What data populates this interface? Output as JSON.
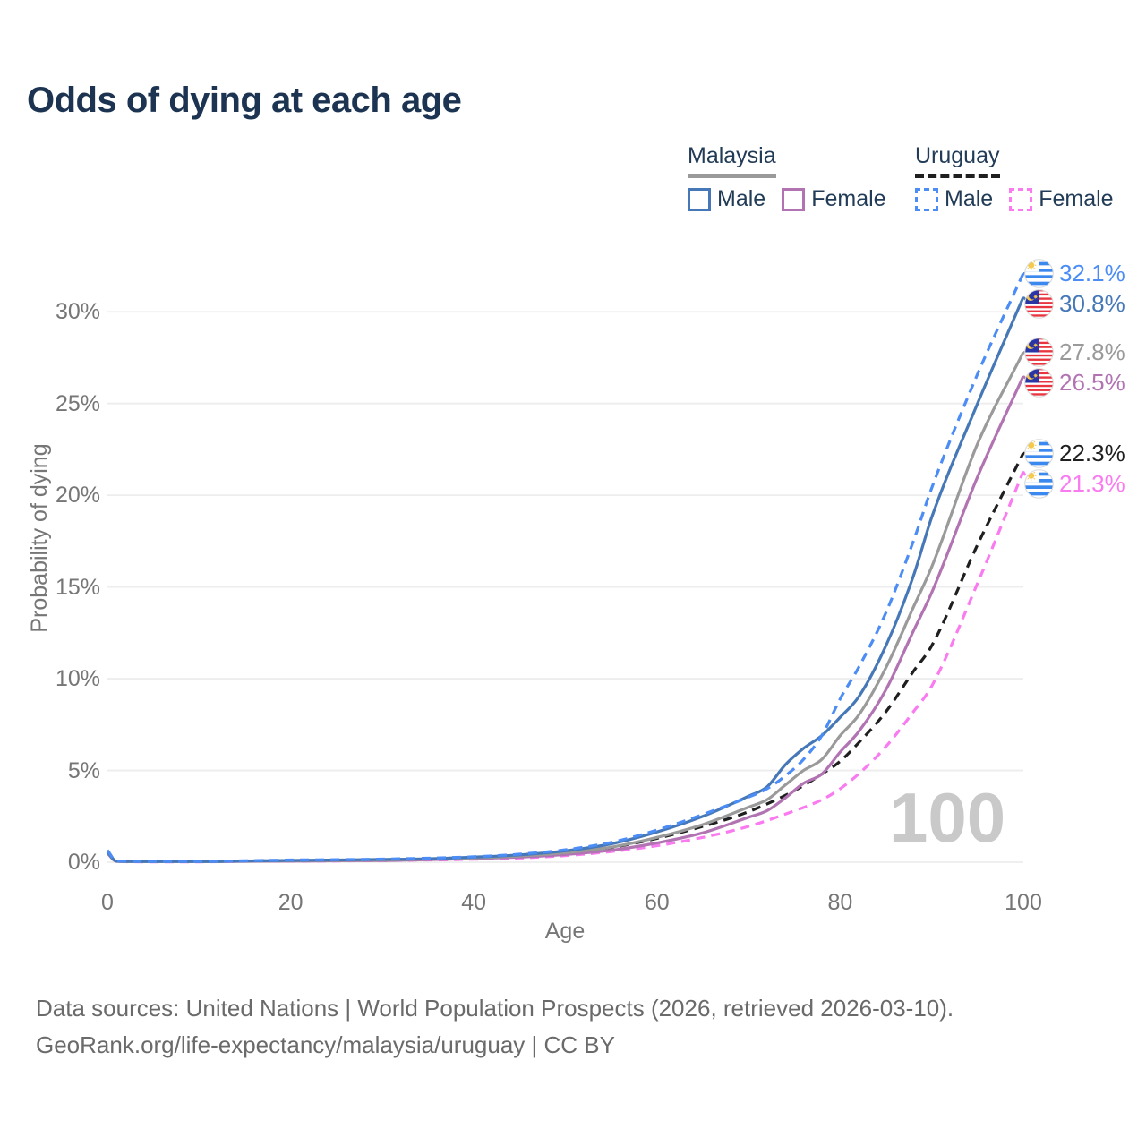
{
  "title": "Odds of dying at each age",
  "legend": {
    "groups": [
      {
        "country": "Malaysia",
        "line_style": "solid",
        "line_color": "#9a9a9a",
        "items": [
          {
            "label": "Male",
            "color": "#4678b8",
            "dashed": false
          },
          {
            "label": "Female",
            "color": "#b273b3",
            "dashed": false
          }
        ]
      },
      {
        "country": "Uruguay",
        "line_style": "dashed",
        "line_color": "#1f1f1f",
        "items": [
          {
            "label": "Male",
            "color": "#4b8cf5",
            "dashed": true
          },
          {
            "label": "Female",
            "color": "#f97bef",
            "dashed": true
          }
        ]
      }
    ]
  },
  "chart_data": {
    "type": "line",
    "title": "Odds of dying at each age",
    "xlabel": "Age",
    "ylabel": "Probability of dying",
    "xlim": [
      0,
      100
    ],
    "ylim": [
      0,
      32.5
    ],
    "x_ticks": [
      0,
      20,
      40,
      60,
      80,
      100
    ],
    "y_ticks": [
      0,
      5,
      10,
      15,
      20,
      25,
      30
    ],
    "y_tick_suffix": "%",
    "grid": "horizontal",
    "legend_position": "top-right",
    "hover_age_watermark": "100",
    "series": [
      {
        "name": "Uruguay Male",
        "country": "Uruguay",
        "sex": "Male",
        "color": "#4b8cf5",
        "dashed": true,
        "flag": "uruguay",
        "end_label": "32.1%",
        "points": [
          [
            0,
            0.65
          ],
          [
            1,
            0.06
          ],
          [
            5,
            0.04
          ],
          [
            10,
            0.04
          ],
          [
            15,
            0.08
          ],
          [
            20,
            0.12
          ],
          [
            25,
            0.14
          ],
          [
            30,
            0.17
          ],
          [
            35,
            0.22
          ],
          [
            40,
            0.3
          ],
          [
            45,
            0.44
          ],
          [
            50,
            0.68
          ],
          [
            55,
            1.08
          ],
          [
            60,
            1.75
          ],
          [
            65,
            2.6
          ],
          [
            70,
            3.55
          ],
          [
            72,
            4.0
          ],
          [
            74,
            4.7
          ],
          [
            76,
            5.6
          ],
          [
            78,
            6.9
          ],
          [
            80,
            8.9
          ],
          [
            82,
            10.6
          ],
          [
            85,
            13.6
          ],
          [
            88,
            17.5
          ],
          [
            90,
            20.4
          ],
          [
            95,
            26.6
          ],
          [
            100,
            32.1
          ]
        ]
      },
      {
        "name": "Malaysia Male",
        "country": "Malaysia",
        "sex": "Male",
        "color": "#4678b8",
        "dashed": false,
        "flag": "malaysia",
        "end_label": "30.8%",
        "points": [
          [
            0,
            0.55
          ],
          [
            1,
            0.06
          ],
          [
            5,
            0.04
          ],
          [
            10,
            0.04
          ],
          [
            15,
            0.07
          ],
          [
            20,
            0.1
          ],
          [
            25,
            0.12
          ],
          [
            30,
            0.15
          ],
          [
            35,
            0.19
          ],
          [
            40,
            0.28
          ],
          [
            45,
            0.4
          ],
          [
            50,
            0.62
          ],
          [
            55,
            1.0
          ],
          [
            60,
            1.65
          ],
          [
            65,
            2.5
          ],
          [
            70,
            3.6
          ],
          [
            72,
            4.1
          ],
          [
            74,
            5.3
          ],
          [
            76,
            6.2
          ],
          [
            78,
            6.9
          ],
          [
            80,
            7.9
          ],
          [
            82,
            9.0
          ],
          [
            85,
            11.8
          ],
          [
            88,
            15.6
          ],
          [
            90,
            18.8
          ],
          [
            95,
            25.0
          ],
          [
            100,
            30.8
          ]
        ]
      },
      {
        "name": "Malaysia Both sexes",
        "country": "Malaysia",
        "sex": "Both",
        "color": "#9a9a9a",
        "dashed": false,
        "flag": "malaysia",
        "end_label": "27.8%",
        "points": [
          [
            0,
            0.52
          ],
          [
            1,
            0.05
          ],
          [
            5,
            0.03
          ],
          [
            10,
            0.03
          ],
          [
            15,
            0.06
          ],
          [
            20,
            0.08
          ],
          [
            25,
            0.1
          ],
          [
            30,
            0.12
          ],
          [
            35,
            0.17
          ],
          [
            40,
            0.24
          ],
          [
            45,
            0.34
          ],
          [
            50,
            0.52
          ],
          [
            55,
            0.82
          ],
          [
            60,
            1.35
          ],
          [
            65,
            2.05
          ],
          [
            70,
            3.0
          ],
          [
            72,
            3.4
          ],
          [
            74,
            4.2
          ],
          [
            76,
            5.0
          ],
          [
            78,
            5.6
          ],
          [
            80,
            6.9
          ],
          [
            82,
            8.0
          ],
          [
            85,
            10.6
          ],
          [
            88,
            13.9
          ],
          [
            90,
            16.1
          ],
          [
            95,
            22.8
          ],
          [
            100,
            27.8
          ]
        ]
      },
      {
        "name": "Malaysia Female",
        "country": "Malaysia",
        "sex": "Female",
        "color": "#b273b3",
        "dashed": false,
        "flag": "malaysia",
        "end_label": "26.5%",
        "points": [
          [
            0,
            0.48
          ],
          [
            1,
            0.05
          ],
          [
            5,
            0.03
          ],
          [
            10,
            0.03
          ],
          [
            15,
            0.05
          ],
          [
            20,
            0.06
          ],
          [
            25,
            0.08
          ],
          [
            30,
            0.09
          ],
          [
            35,
            0.14
          ],
          [
            40,
            0.2
          ],
          [
            45,
            0.28
          ],
          [
            50,
            0.42
          ],
          [
            55,
            0.65
          ],
          [
            60,
            1.05
          ],
          [
            65,
            1.6
          ],
          [
            70,
            2.45
          ],
          [
            72,
            2.8
          ],
          [
            74,
            3.5
          ],
          [
            76,
            4.3
          ],
          [
            78,
            4.8
          ],
          [
            80,
            6.0
          ],
          [
            82,
            7.1
          ],
          [
            85,
            9.4
          ],
          [
            88,
            12.6
          ],
          [
            90,
            14.7
          ],
          [
            95,
            21.0
          ],
          [
            100,
            26.5
          ]
        ]
      },
      {
        "name": "Uruguay Both sexes",
        "country": "Uruguay",
        "sex": "Both",
        "color": "#1f1f1f",
        "dashed": true,
        "flag": "uruguay",
        "end_label": "22.3%",
        "points": [
          [
            0,
            0.55
          ],
          [
            1,
            0.05
          ],
          [
            5,
            0.03
          ],
          [
            10,
            0.03
          ],
          [
            15,
            0.07
          ],
          [
            20,
            0.09
          ],
          [
            25,
            0.11
          ],
          [
            30,
            0.13
          ],
          [
            35,
            0.18
          ],
          [
            40,
            0.23
          ],
          [
            45,
            0.33
          ],
          [
            50,
            0.5
          ],
          [
            55,
            0.8
          ],
          [
            60,
            1.3
          ],
          [
            65,
            1.95
          ],
          [
            70,
            2.75
          ],
          [
            75,
            3.9
          ],
          [
            78,
            4.8
          ],
          [
            80,
            5.5
          ],
          [
            82,
            6.5
          ],
          [
            85,
            8.2
          ],
          [
            88,
            10.4
          ],
          [
            90,
            11.8
          ],
          [
            95,
            17.3
          ],
          [
            100,
            22.3
          ]
        ]
      },
      {
        "name": "Uruguay Female",
        "country": "Uruguay",
        "sex": "Female",
        "color": "#f97bef",
        "dashed": true,
        "flag": "uruguay",
        "end_label": "21.3%",
        "points": [
          [
            0,
            0.5
          ],
          [
            1,
            0.04
          ],
          [
            5,
            0.02
          ],
          [
            10,
            0.02
          ],
          [
            15,
            0.05
          ],
          [
            20,
            0.06
          ],
          [
            25,
            0.07
          ],
          [
            30,
            0.09
          ],
          [
            35,
            0.12
          ],
          [
            40,
            0.16
          ],
          [
            45,
            0.23
          ],
          [
            50,
            0.36
          ],
          [
            55,
            0.58
          ],
          [
            60,
            0.9
          ],
          [
            65,
            1.35
          ],
          [
            70,
            1.95
          ],
          [
            75,
            2.8
          ],
          [
            78,
            3.4
          ],
          [
            80,
            4.0
          ],
          [
            82,
            4.8
          ],
          [
            85,
            6.3
          ],
          [
            88,
            8.2
          ],
          [
            90,
            9.6
          ],
          [
            95,
            15.2
          ],
          [
            100,
            21.3
          ]
        ]
      }
    ]
  },
  "footer": {
    "line1": "Data sources: United Nations | World Population Prospects (2026, retrieved 2026-03-10).",
    "line2": "GeoRank.org/life-expectancy/malaysia/uruguay | CC BY"
  }
}
